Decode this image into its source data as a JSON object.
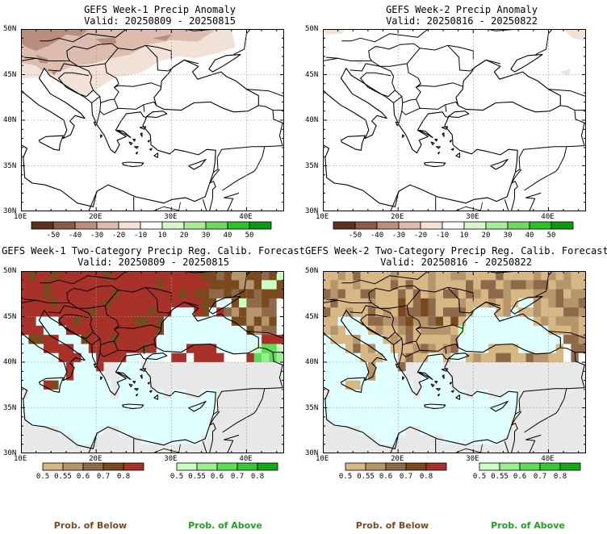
{
  "panels": [
    {
      "id": "p1",
      "title": "GEFS Week-1 Precip Anomaly",
      "valid": "Valid: 20250809 - 20250815"
    },
    {
      "id": "p2",
      "title": "GEFS Week-2 Precip Anomaly",
      "valid": "Valid: 20250816 - 20250822"
    },
    {
      "id": "p3",
      "title": "GEFS Week-1 Two-Category Precip Reg. Calib. Forecast",
      "valid": "Valid: 20250809 - 20250815"
    },
    {
      "id": "p4",
      "title": "GEFS Week-2 Two-Category Precip Reg. Calib. Forecast",
      "valid": "Valid: 20250816 - 20250822"
    }
  ],
  "axes": {
    "lat_labels": [
      "50N",
      "45N",
      "40N",
      "35N",
      "30N"
    ],
    "lon_labels": [
      "10E",
      "20E",
      "30E",
      "40E"
    ]
  },
  "anomaly_colorbar": {
    "labels": [
      "-50",
      "-40",
      "-30",
      "-20",
      "-10",
      "10",
      "20",
      "30",
      "40",
      "50"
    ],
    "colors": [
      "#5e3126",
      "#8c5a4c",
      "#b98e7f",
      "#dcbcae",
      "#f2e1d6",
      "#ffffff",
      "#d8f5d0",
      "#a8eb98",
      "#6fd860",
      "#2fbf2a",
      "#119611"
    ]
  },
  "prob_below_colorbar": {
    "labels": [
      "0.5",
      "0.55",
      "0.6",
      "0.7",
      "0.8"
    ],
    "colors": [
      "#d7b784",
      "#b7956a",
      "#8f6a4a",
      "#7a4a1e",
      "#a8322a"
    ]
  },
  "prob_above_colorbar": {
    "labels": [
      "0.5",
      "0.55",
      "0.6",
      "0.7",
      "0.8"
    ],
    "colors": [
      "#ccffc2",
      "#9af08c",
      "#5fdc58",
      "#36c636",
      "#17a817"
    ]
  },
  "footer": {
    "below_label": "Prob. of Below",
    "above_label": "Prob. of Above",
    "below_color": "#7a4a1e",
    "above_color": "#1aa51a"
  },
  "colors": {
    "sea": "#e0ffff",
    "missing": "#e8e8e8"
  }
}
